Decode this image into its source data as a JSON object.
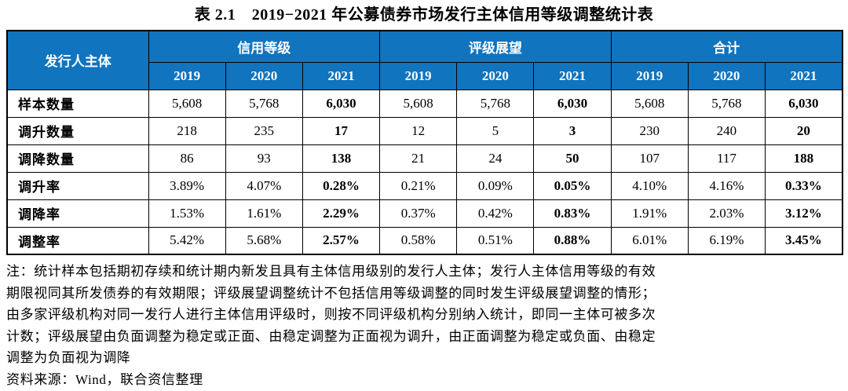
{
  "title": "表 2.1　2019−2021 年公募债券市场发行主体信用等级调整统计表",
  "colors": {
    "header_bg": "#1074BF",
    "header_text": "#FFFFFF",
    "border": "#000000",
    "page_bg": "#FFFFFF"
  },
  "table": {
    "corner_header": "发行人主体",
    "groups": [
      {
        "label": "信用等级",
        "years": [
          "2019",
          "2020",
          "2021"
        ]
      },
      {
        "label": "评级展望",
        "years": [
          "2019",
          "2020",
          "2021"
        ]
      },
      {
        "label": "合计",
        "years": [
          "2019",
          "2020",
          "2021"
        ]
      }
    ],
    "rows": [
      {
        "label": "样本数量",
        "values": [
          "5,608",
          "5,768",
          "6,030",
          "5,608",
          "5,768",
          "6,030",
          "5,608",
          "5,768",
          "6,030"
        ]
      },
      {
        "label": "调升数量",
        "values": [
          "218",
          "235",
          "17",
          "12",
          "5",
          "3",
          "230",
          "240",
          "20"
        ]
      },
      {
        "label": "调降数量",
        "values": [
          "86",
          "93",
          "138",
          "21",
          "24",
          "50",
          "107",
          "117",
          "188"
        ]
      },
      {
        "label": "调升率",
        "values": [
          "3.89%",
          "4.07%",
          "0.28%",
          "0.21%",
          "0.09%",
          "0.05%",
          "4.10%",
          "4.16%",
          "0.33%"
        ]
      },
      {
        "label": "调降率",
        "values": [
          "1.53%",
          "1.61%",
          "2.29%",
          "0.37%",
          "0.42%",
          "0.83%",
          "1.91%",
          "2.03%",
          "3.12%"
        ]
      },
      {
        "label": "调整率",
        "values": [
          "5.42%",
          "5.68%",
          "2.57%",
          "0.58%",
          "0.51%",
          "0.88%",
          "6.01%",
          "6.19%",
          "3.45%"
        ]
      }
    ]
  },
  "note": {
    "lines": [
      "注：统计样本包括期初存续和统计期内新发且具有主体信用级别的发行人主体；发行人主体信用等级的有效",
      "期限视同其所发债券的有效期限；评级展望调整统计不包括信用等级调整的同时发生评级展望调整的情形；",
      "由多家评级机构对同一发行人进行主体信用评级时，则按不同评级机构分别纳入统计，即同一主体可被多次",
      "计数；评级展望由负面调整为稳定或正面、由稳定调整为正面视为调升，由正面调整为稳定或负面、由稳定",
      "调整为负面视为调降"
    ]
  },
  "source": "资料来源：Wind，联合资信整理"
}
